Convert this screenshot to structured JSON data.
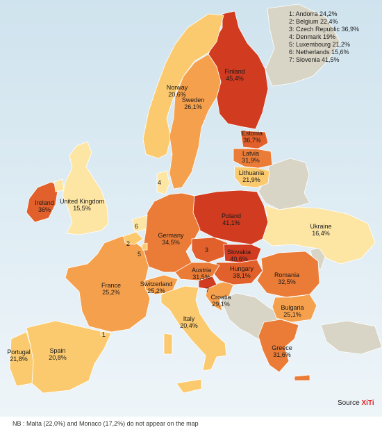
{
  "colors": {
    "sea_top": "#cfe3ee",
    "sea_bottom": "#eef5f9",
    "no_data": "#d9d5c6",
    "border": "#ffffff",
    "scale": {
      "lt20": "#fde5a3",
      "20_25": "#fbca6e",
      "25_30": "#f5a04c",
      "30_35": "#ea7c38",
      "35_40": "#e2602b",
      "gte40": "#d13b20"
    },
    "brand": "#e02020"
  },
  "countries": [
    {
      "id": "finland",
      "name": "Finland",
      "value": "45,4%",
      "share": 45.4,
      "numbered": false
    },
    {
      "id": "norway",
      "name": "Norway",
      "value": "20,6%",
      "share": 20.6,
      "numbered": false
    },
    {
      "id": "sweden",
      "name": "Sweden",
      "value": "26,1%",
      "share": 26.1,
      "numbered": false
    },
    {
      "id": "estonia",
      "name": "Estonia",
      "value": "36,7%",
      "share": 36.7,
      "numbered": false
    },
    {
      "id": "latvia",
      "name": "Latvia",
      "value": "31,9%",
      "share": 31.9,
      "numbered": false
    },
    {
      "id": "lithuania",
      "name": "Lithuania",
      "value": "21,9%",
      "share": 21.9,
      "numbered": false
    },
    {
      "id": "ireland",
      "name": "Ireland",
      "value": "36%",
      "share": 36.0,
      "numbered": false
    },
    {
      "id": "united-kingdom",
      "name": "United Kingdom",
      "value": "15,5%",
      "share": 15.5,
      "numbered": false
    },
    {
      "id": "poland",
      "name": "Poland",
      "value": "41,1%",
      "share": 41.1,
      "numbered": false
    },
    {
      "id": "ukraine",
      "name": "Ukraine",
      "value": "16,4%",
      "share": 16.4,
      "numbered": false
    },
    {
      "id": "germany",
      "name": "Germany",
      "value": "34,5%",
      "share": 34.5,
      "numbered": false
    },
    {
      "id": "slovakia",
      "name": "Slovakia",
      "value": "40,6%",
      "share": 40.6,
      "numbered": false
    },
    {
      "id": "hungary",
      "name": "Hungary",
      "value": "38,1%",
      "share": 38.1,
      "numbered": false
    },
    {
      "id": "austria",
      "name": "Austria",
      "value": "31,5%",
      "share": 31.5,
      "numbered": false
    },
    {
      "id": "romania",
      "name": "Romania",
      "value": "32,5%",
      "share": 32.5,
      "numbered": false
    },
    {
      "id": "france",
      "name": "France",
      "value": "25,2%",
      "share": 25.2,
      "numbered": false
    },
    {
      "id": "switzerland",
      "name": "Switzerland",
      "value": "25,2%",
      "share": 25.2,
      "numbered": false
    },
    {
      "id": "croatia",
      "name": "Croatia",
      "value": "29,1%",
      "share": 29.1,
      "numbered": false
    },
    {
      "id": "bulgaria",
      "name": "Bulgaria",
      "value": "25,1%",
      "share": 25.1,
      "numbered": false
    },
    {
      "id": "italy",
      "name": "Italy",
      "value": "20,4%",
      "share": 20.4,
      "numbered": false
    },
    {
      "id": "portugal",
      "name": "Portugal",
      "value": "21,8%",
      "share": 21.8,
      "numbered": false
    },
    {
      "id": "spain",
      "name": "Spain",
      "value": "20,8%",
      "share": 20.8,
      "numbered": false
    },
    {
      "id": "greece",
      "name": "Greece",
      "value": "31,6%",
      "share": 31.6,
      "numbered": false
    },
    {
      "id": "andorra",
      "name": "Andorra",
      "value": "24,2%",
      "share": 24.2,
      "numbered": true,
      "number": "1"
    },
    {
      "id": "belgium",
      "name": "Belgium",
      "value": "22,4%",
      "share": 22.4,
      "numbered": true,
      "number": "2"
    },
    {
      "id": "czech-republic",
      "name": "Czech Republic",
      "value": "36,9%",
      "share": 36.9,
      "numbered": true,
      "number": "3"
    },
    {
      "id": "denmark",
      "name": "Denmark",
      "value": "19%",
      "share": 19.0,
      "numbered": true,
      "number": "4"
    },
    {
      "id": "luxembourg",
      "name": "Luxembourg",
      "value": "21,2%",
      "share": 21.2,
      "numbered": true,
      "number": "5"
    },
    {
      "id": "netherlands",
      "name": "Netherlands",
      "value": "15,6%",
      "share": 15.6,
      "numbered": true,
      "number": "6"
    },
    {
      "id": "slovenia",
      "name": "Slovenia",
      "value": "41,5%",
      "share": 41.5,
      "numbered": true,
      "number": "7"
    }
  ],
  "legend": [
    "1: Andorra 24,2%",
    "2: Belgium 22,4%",
    "3: Czech Republic 36,9%",
    "4: Denmark 19%",
    "5: Luxembourg 21,2%",
    "6: Netherlands 15,6%",
    "7: Slovenia 41,5%"
  ],
  "source": {
    "prefix": "Source",
    "brand": "XiTi"
  },
  "footnote": "NB : Malta (22,0%) and Monaco (17,2%) do not appear on the map"
}
